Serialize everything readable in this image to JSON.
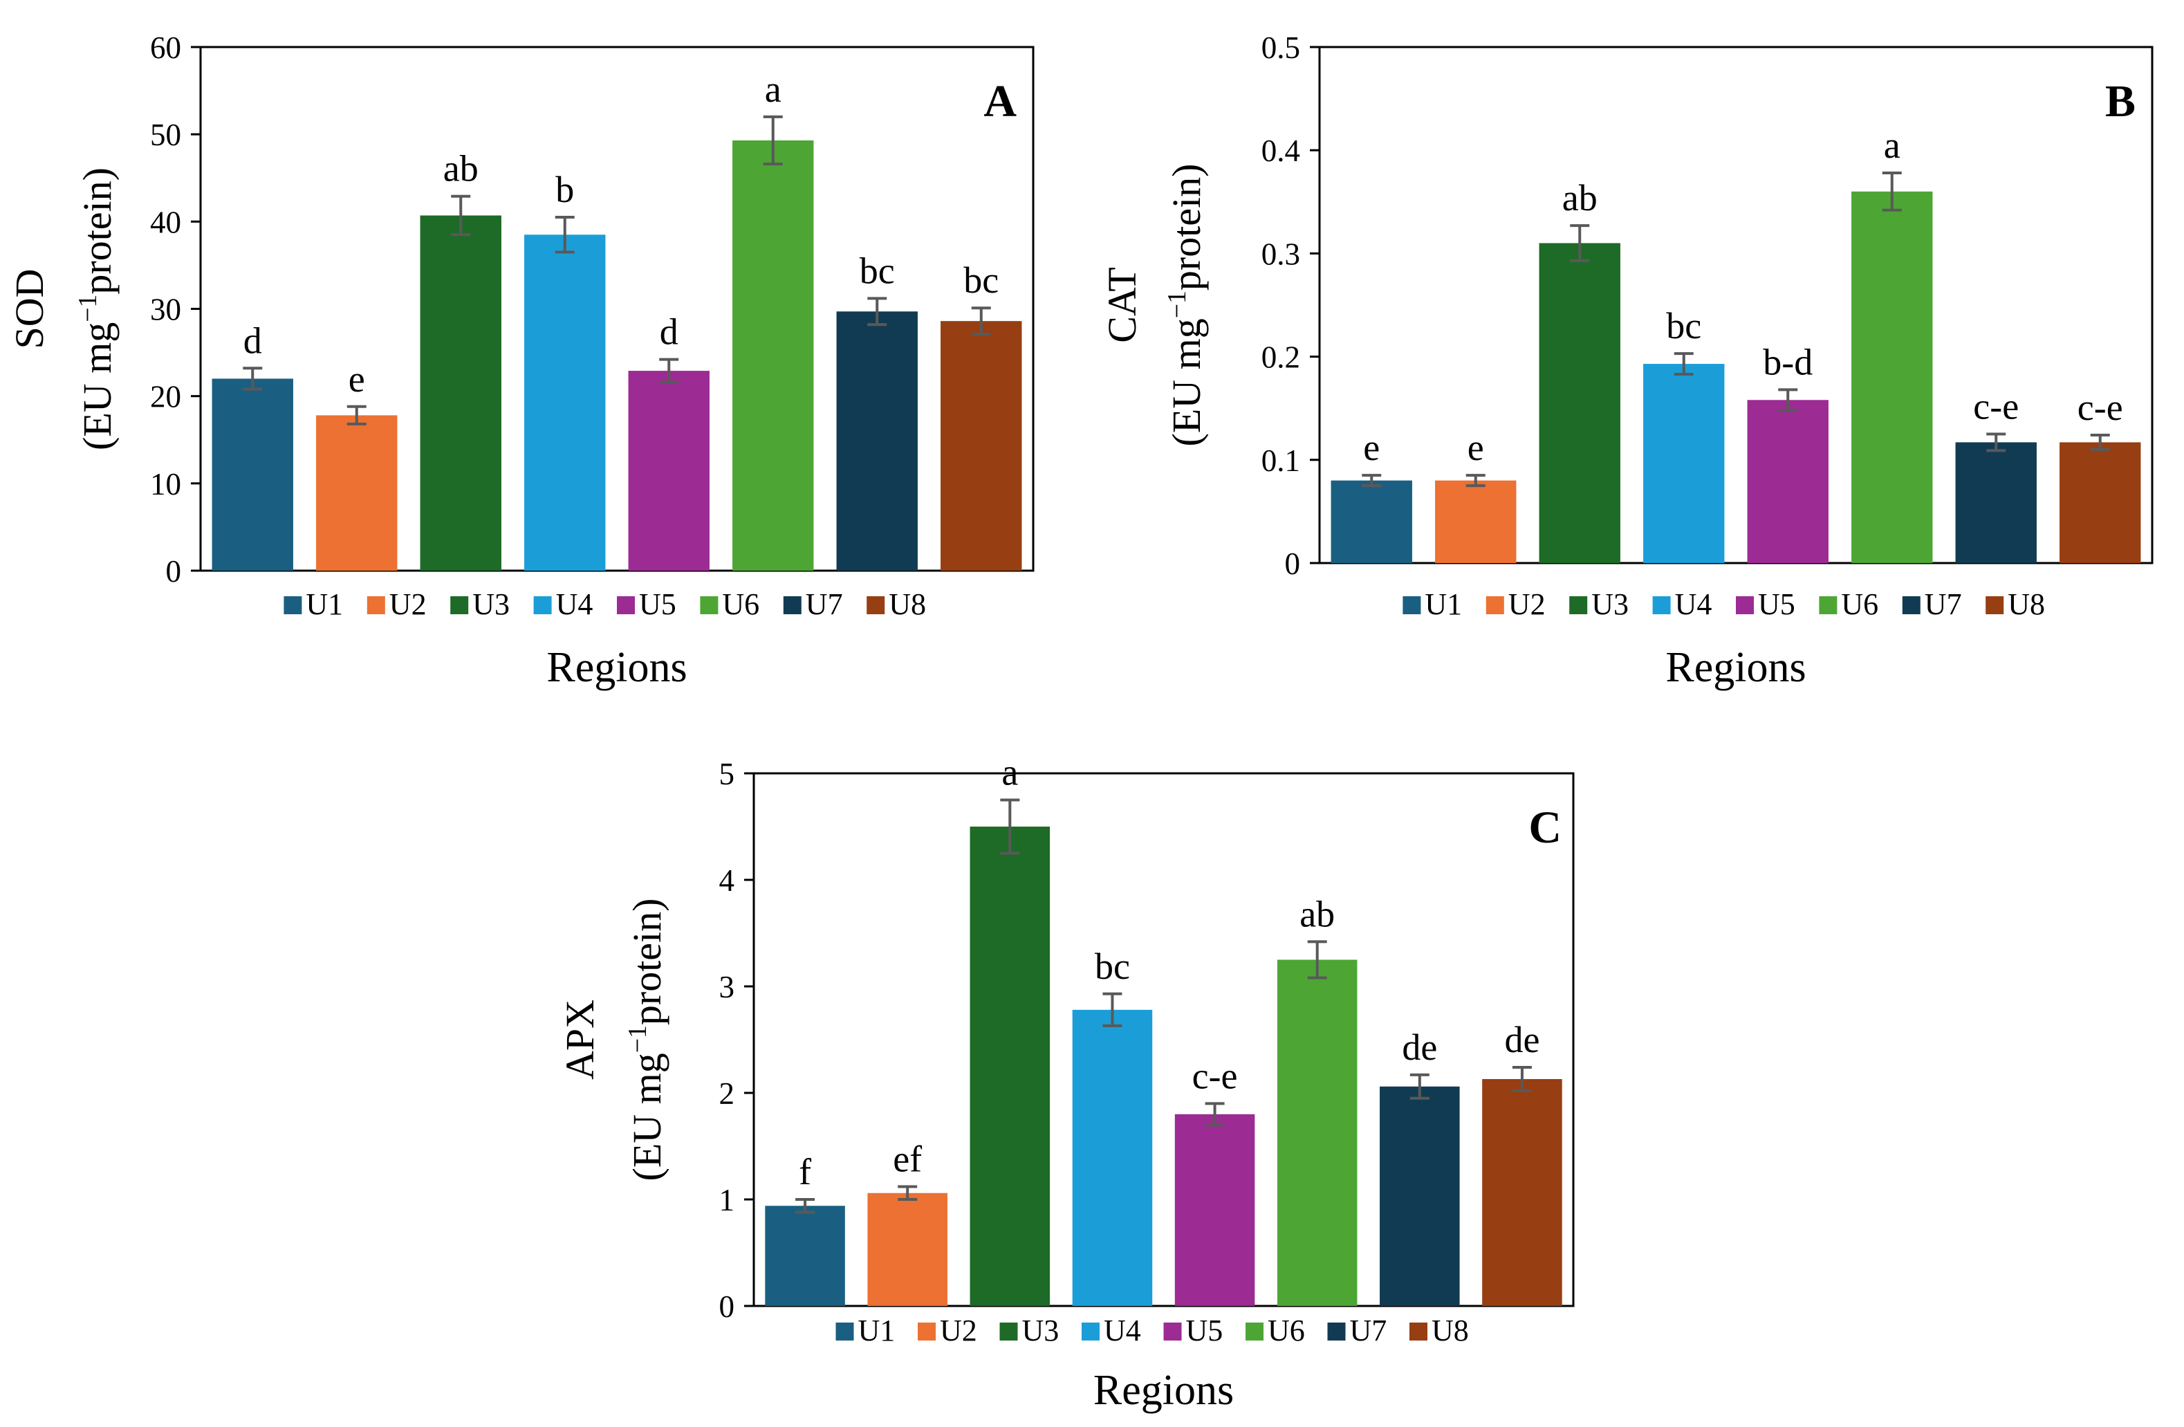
{
  "chart_data": [
    {
      "panel_id": "A",
      "type": "bar",
      "panel_label": "A",
      "title": "",
      "xlabel": "Regions",
      "ylabel_line1": "SOD",
      "ylabel_line2_pre": "(EU mg",
      "ylabel_sup": "−1",
      "ylabel_line2_post": "protein)",
      "ylim": [
        0,
        60
      ],
      "yticks": [
        0,
        10,
        20,
        30,
        40,
        50,
        60
      ],
      "ytick_labels": [
        "0",
        "10",
        "20",
        "30",
        "40",
        "50",
        "60"
      ],
      "categories": [
        "U1",
        "U2",
        "U3",
        "U4",
        "U5",
        "U6",
        "U7",
        "U8"
      ],
      "values": [
        22,
        17.8,
        40.7,
        38.5,
        22.9,
        49.3,
        29.7,
        28.6
      ],
      "errors": [
        1.2,
        1.0,
        2.2,
        2.0,
        1.3,
        2.7,
        1.5,
        1.5
      ],
      "significance_letters": [
        "d",
        "e",
        "ab",
        "b",
        "d",
        "a",
        "bc",
        "bc"
      ],
      "legend_position": "bottom"
    },
    {
      "panel_id": "B",
      "type": "bar",
      "panel_label": "B",
      "title": "",
      "xlabel": "Regions",
      "ylabel_line1": "CAT",
      "ylabel_line2_pre": "(EU mg",
      "ylabel_sup": "−1",
      "ylabel_line2_post": "protein)",
      "ylim": [
        0,
        0.5
      ],
      "yticks": [
        0,
        0.1,
        0.2,
        0.3,
        0.4,
        0.5
      ],
      "ytick_labels": [
        "0",
        "0.1",
        "0.2",
        "0.3",
        "0.4",
        "0.5"
      ],
      "categories": [
        "U1",
        "U2",
        "U3",
        "U4",
        "U5",
        "U6",
        "U7",
        "U8"
      ],
      "values": [
        0.08,
        0.08,
        0.31,
        0.193,
        0.158,
        0.36,
        0.117,
        0.117
      ],
      "errors": [
        0.005,
        0.005,
        0.017,
        0.01,
        0.01,
        0.018,
        0.008,
        0.007
      ],
      "significance_letters": [
        "e",
        "e",
        "ab",
        "bc",
        "b-d",
        "a",
        "c-e",
        "c-e"
      ],
      "legend_position": "bottom"
    },
    {
      "panel_id": "C",
      "type": "bar",
      "panel_label": "C",
      "title": "",
      "xlabel": "Regions",
      "ylabel_line1": "APX",
      "ylabel_line2_pre": "(EU mg",
      "ylabel_sup": "−1",
      "ylabel_line2_post": "protein)",
      "ylim": [
        0,
        5
      ],
      "yticks": [
        0,
        1,
        2,
        3,
        4,
        5
      ],
      "ytick_labels": [
        "0",
        "1",
        "2",
        "3",
        "4",
        "5"
      ],
      "categories": [
        "U1",
        "U2",
        "U3",
        "U4",
        "U5",
        "U6",
        "U7",
        "U8"
      ],
      "values": [
        0.94,
        1.06,
        4.5,
        2.78,
        1.8,
        3.25,
        2.06,
        2.13
      ],
      "errors": [
        0.06,
        0.06,
        0.25,
        0.15,
        0.1,
        0.17,
        0.11,
        0.11
      ],
      "significance_letters": [
        "f",
        "ef",
        "a",
        "bc",
        "c-e",
        "ab",
        "de",
        "de"
      ],
      "legend_position": "bottom"
    }
  ],
  "colors": [
    "#1a5f81",
    "#ec7132",
    "#1d6b27",
    "#1b9ed8",
    "#9c2b93",
    "#4da634",
    "#113b52",
    "#973e12"
  ],
  "error_bar_color": "#595959"
}
